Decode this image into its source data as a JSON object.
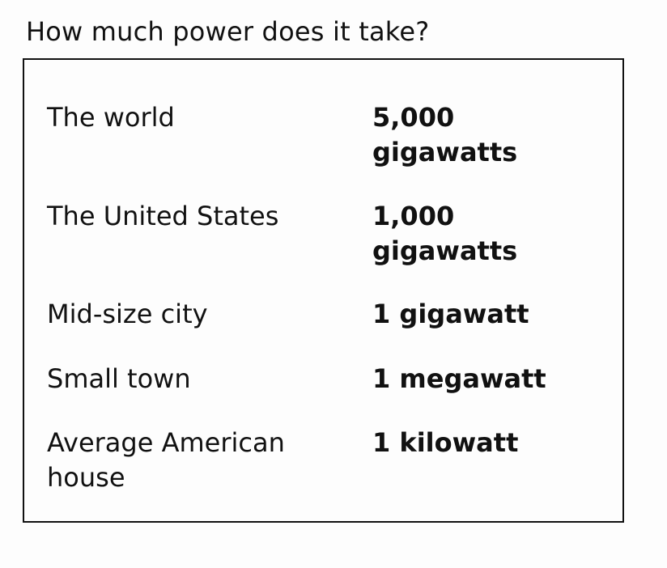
{
  "title": "How much power does it take?",
  "rows": [
    {
      "label": "The world",
      "value": "5,000 gigawatts"
    },
    {
      "label": "The United States",
      "value": "1,000 gigawatts"
    },
    {
      "label": "Mid-size city",
      "value": "1 gigawatt"
    },
    {
      "label": "Small town",
      "value": "1 megawatt"
    },
    {
      "label": "Average American house",
      "value": "1 kilowatt"
    }
  ]
}
